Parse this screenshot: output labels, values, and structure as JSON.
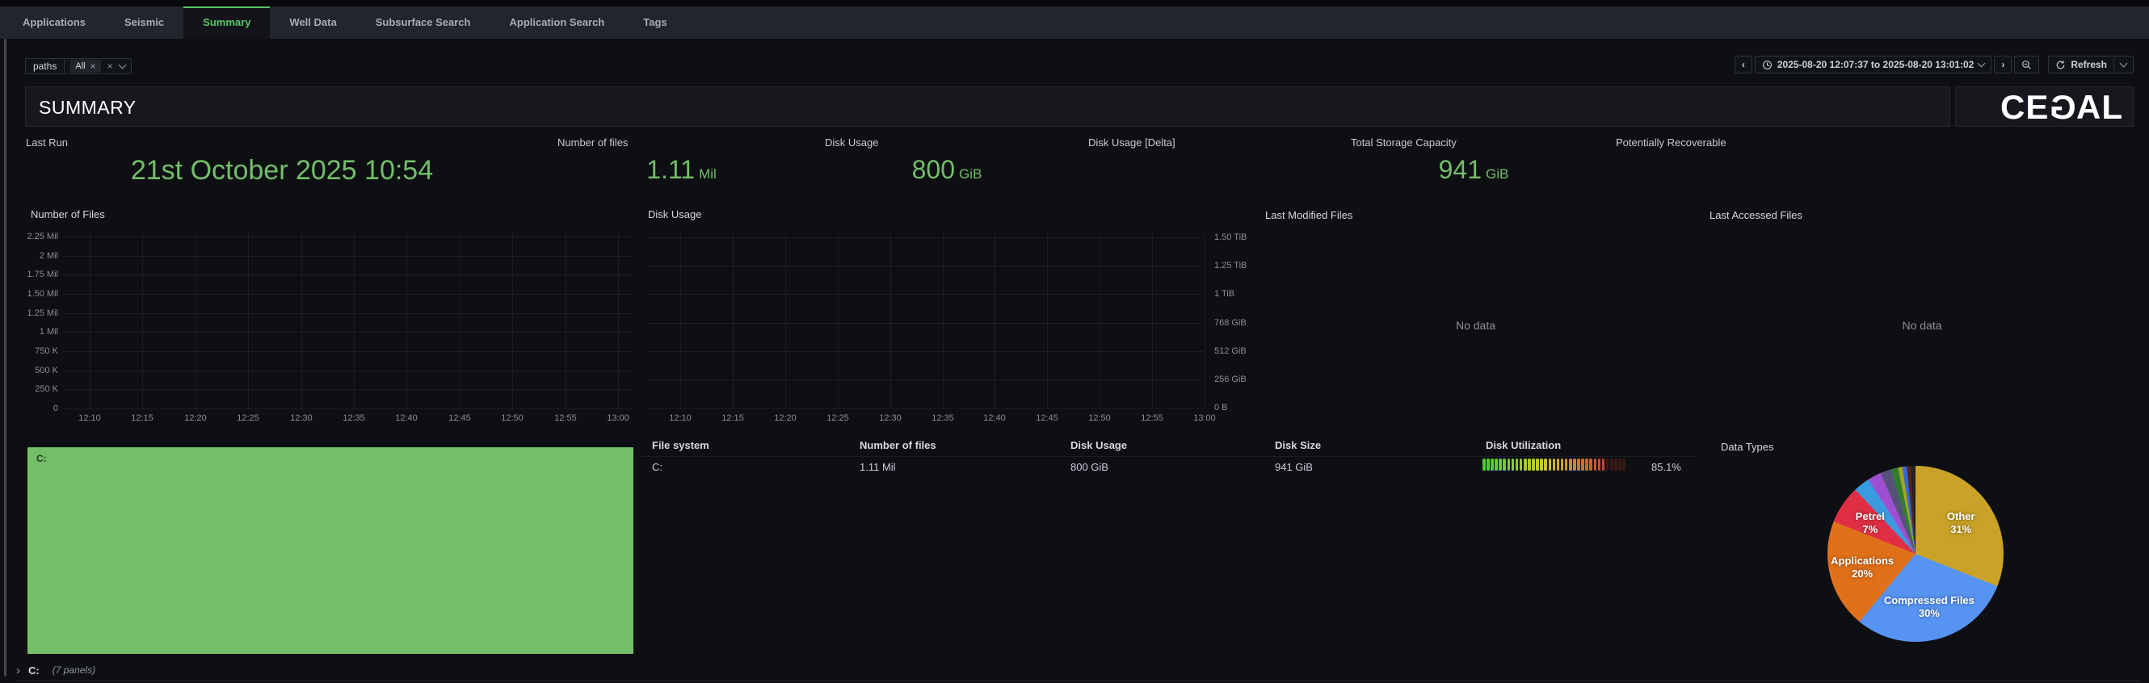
{
  "nav": {
    "tabs": [
      {
        "label": "Applications",
        "active": false
      },
      {
        "label": "Seismic",
        "active": false
      },
      {
        "label": "Summary",
        "active": true
      },
      {
        "label": "Well Data",
        "active": false
      },
      {
        "label": "Subsurface Search",
        "active": false
      },
      {
        "label": "Application Search",
        "active": false
      },
      {
        "label": "Tags",
        "active": false
      }
    ]
  },
  "icons": {
    "chevron_left": "‹",
    "chevron_right": "›",
    "close": "×",
    "collapse_chevron": "›"
  },
  "toolbar": {
    "filter_label": "paths",
    "filter_value": "All",
    "time_range": "2025-08-20 12:07:37 to 2025-08-20 13:01:02",
    "refresh_label": "Refresh"
  },
  "header": {
    "title": "SUMMARY",
    "logo": "CEGAL"
  },
  "stats": [
    {
      "label": "Last Run",
      "value": "21st October 2025 10:54",
      "suffix": ""
    },
    {
      "label": "Number of files",
      "value": "1.11",
      "suffix": "Mil"
    },
    {
      "label": "Disk Usage",
      "value": "800",
      "suffix": "GiB"
    },
    {
      "label": "Disk Usage [Delta]",
      "value": "",
      "suffix": ""
    },
    {
      "label": "Total Storage Capacity",
      "value": "941",
      "suffix": "GiB"
    },
    {
      "label": "Potentially Recoverable",
      "value": "",
      "suffix": ""
    }
  ],
  "colors": {
    "accent_green": "#73BF69",
    "treemap_green": "#73BF69",
    "tab_green": "#58c669"
  },
  "charts": {
    "number_of_files": {
      "title": "Number of Files",
      "y_ticks": [
        "2.25 Mil",
        "2 Mil",
        "1.75 Mil",
        "1.50 Mil",
        "1.25 Mil",
        "1 Mil",
        "750 K",
        "500 K",
        "250 K",
        "0"
      ],
      "x_ticks": [
        "12:10",
        "12:15",
        "12:20",
        "12:25",
        "12:30",
        "12:35",
        "12:40",
        "12:45",
        "12:50",
        "12:55",
        "13:00"
      ]
    },
    "disk_usage": {
      "title": "Disk Usage",
      "y_ticks": [
        "1.50 TiB",
        "1.25 TiB",
        "1 TiB",
        "768 GiB",
        "512 GiB",
        "256 GiB",
        "0 B"
      ],
      "x_ticks": [
        "12:10",
        "12:15",
        "12:20",
        "12:25",
        "12:30",
        "12:35",
        "12:40",
        "12:45",
        "12:50",
        "12:55",
        "13:00"
      ]
    },
    "last_modified": {
      "title": "Last Modified Files",
      "no_data": "No data"
    },
    "last_accessed": {
      "title": "Last Accessed Files",
      "no_data": "No data"
    }
  },
  "table": {
    "headers": [
      "File system",
      "Number of files",
      "Disk Usage",
      "Disk Size",
      "Disk Utilization"
    ],
    "rows": [
      {
        "file_system": "C:",
        "number_of_files": "1.11 Mil",
        "disk_usage": "800 GiB",
        "disk_size": "941 GiB",
        "disk_utilization_pct": 85.1,
        "disk_utilization_label": "85.1%"
      }
    ]
  },
  "treemap": {
    "label": "C:"
  },
  "pie": {
    "title": "Data Types",
    "slices": [
      {
        "label": "Other",
        "pct": 31,
        "color": "#C9A227"
      },
      {
        "label": "Compressed Files",
        "pct": 30,
        "color": "#5794F2"
      },
      {
        "label": "Applications",
        "pct": 20,
        "color": "#E0701A"
      },
      {
        "label": "Petrel",
        "pct": 7,
        "color": "#E02F44"
      },
      {
        "label": "",
        "pct": 3,
        "color": "#3B9BE0"
      },
      {
        "label": "",
        "pct": 2.5,
        "color": "#9E4FD1"
      },
      {
        "label": "",
        "pct": 2,
        "color": "#55517B"
      },
      {
        "label": "",
        "pct": 1.3,
        "color": "#2F7D31"
      },
      {
        "label": "",
        "pct": 0.8,
        "color": "#A6A51F"
      },
      {
        "label": "",
        "pct": 0.8,
        "color": "#3069D6"
      },
      {
        "label": "",
        "pct": 0.7,
        "color": "#58251B"
      },
      {
        "label": "",
        "pct": 0.9,
        "color": "#232327"
      }
    ]
  },
  "collapsed_row": {
    "label": "C:",
    "panels_note": "(7 panels)"
  },
  "chart_data": [
    {
      "type": "line",
      "title": "Number of Files",
      "x_ticks": [
        "12:10",
        "12:15",
        "12:20",
        "12:25",
        "12:30",
        "12:35",
        "12:40",
        "12:45",
        "12:50",
        "12:55",
        "13:00"
      ],
      "y_ticks": [
        "0",
        "250 K",
        "500 K",
        "750 K",
        "1 Mil",
        "1.25 Mil",
        "1.50 Mil",
        "1.75 Mil",
        "2 Mil",
        "2.25 Mil"
      ],
      "series": [],
      "note": "empty plot, grid only"
    },
    {
      "type": "line",
      "title": "Disk Usage",
      "x_ticks": [
        "12:10",
        "12:15",
        "12:20",
        "12:25",
        "12:30",
        "12:35",
        "12:40",
        "12:45",
        "12:50",
        "12:55",
        "13:00"
      ],
      "y_ticks": [
        "0 B",
        "256 GiB",
        "512 GiB",
        "768 GiB",
        "1 TiB",
        "1.25 TiB",
        "1.50 TiB"
      ],
      "series": [],
      "note": "empty plot, grid only, y axis on right"
    },
    {
      "type": "pie",
      "title": "Data Types",
      "labels": [
        "Other",
        "Compressed Files",
        "Applications",
        "Petrel",
        "small unlabeled slices"
      ],
      "values": [
        31,
        30,
        20,
        7,
        12
      ]
    },
    {
      "type": "bar",
      "title": "Disk Utilization",
      "categories": [
        "C:"
      ],
      "values": [
        85.1
      ],
      "unit": "%"
    }
  ]
}
